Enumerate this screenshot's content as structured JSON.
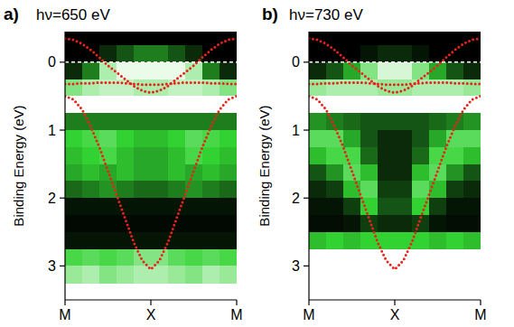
{
  "chart_data": [
    {
      "type": "heatmap",
      "panel_label": "a)",
      "title": "hν=650 eV",
      "ylabel": "Binding Energy (eV)",
      "xlim": [
        0,
        2
      ],
      "xticks": [
        {
          "value": 0,
          "label": "M"
        },
        {
          "value": 1,
          "label": "X"
        },
        {
          "value": 2,
          "label": "M"
        }
      ],
      "ylim": [
        3.5,
        -0.45
      ],
      "yticks": [
        0,
        1,
        2,
        3
      ],
      "hline": 0,
      "x_edges": [
        0,
        0.2,
        0.4,
        0.6,
        0.8,
        1.0,
        1.2,
        1.4,
        1.6,
        1.8,
        2.0
      ],
      "y_edges": [
        -0.5,
        -0.25,
        0,
        0.25,
        0.5,
        0.75,
        1.0,
        1.25,
        1.5,
        1.75,
        2.0,
        2.25,
        2.5,
        2.75,
        3.0,
        3.25
      ],
      "cells": [
        [
          0,
          0,
          0,
          0,
          0,
          0,
          0,
          0,
          0,
          0
        ],
        [
          0,
          0,
          0.1,
          0.2,
          0.3,
          0.3,
          0.2,
          0.1,
          0,
          0
        ],
        [
          0.1,
          0.3,
          0.8,
          0.95,
          0.95,
          0.95,
          0.95,
          0.8,
          0.3,
          0.1
        ],
        [
          0.7,
          0.8,
          0.85,
          0.85,
          0.8,
          0.8,
          0.85,
          0.85,
          0.8,
          0.7
        ],
        [
          1,
          1,
          1,
          1,
          1,
          1,
          1,
          1,
          1,
          1
        ],
        [
          0.3,
          0.3,
          0.3,
          0.3,
          0.3,
          0.3,
          0.3,
          0.3,
          0.3,
          0.3
        ],
        [
          0.5,
          0.55,
          0.6,
          0.5,
          0.45,
          0.45,
          0.5,
          0.6,
          0.55,
          0.5
        ],
        [
          0.45,
          0.5,
          0.55,
          0.45,
          0.4,
          0.4,
          0.45,
          0.55,
          0.5,
          0.45
        ],
        [
          0.4,
          0.45,
          0.4,
          0.45,
          0.4,
          0.4,
          0.45,
          0.4,
          0.45,
          0.4
        ],
        [
          0.25,
          0.3,
          0.35,
          0.3,
          0.25,
          0.25,
          0.3,
          0.35,
          0.3,
          0.25
        ],
        [
          0.05,
          0.05,
          0.05,
          0.05,
          0.05,
          0.05,
          0.05,
          0.05,
          0.05,
          0.05
        ],
        [
          0.02,
          0.02,
          0.02,
          0.02,
          0.02,
          0.02,
          0.02,
          0.02,
          0.02,
          0.02
        ],
        [
          0.05,
          0.05,
          0.05,
          0.05,
          0.05,
          0.05,
          0.05,
          0.05,
          0.05,
          0.05
        ],
        [
          0.55,
          0.6,
          0.55,
          0.6,
          0.7,
          0.7,
          0.6,
          0.55,
          0.6,
          0.55
        ],
        [
          0.75,
          0.8,
          0.7,
          0.75,
          0.8,
          0.8,
          0.75,
          0.7,
          0.8,
          0.75
        ]
      ],
      "x": [
        0,
        0.1,
        0.2,
        0.3,
        0.4,
        0.5,
        0.6,
        0.7,
        0.8,
        0.9,
        1.0,
        1.1,
        1.2,
        1.3,
        1.4,
        1.5,
        1.6,
        1.7,
        1.8,
        1.9,
        2.0
      ],
      "series": [
        {
          "color": "#e8231b",
          "line_style": "dotted",
          "values": [
            -0.35,
            -0.33,
            -0.27,
            -0.18,
            -0.07,
            0.05,
            0.15,
            0.25,
            0.35,
            0.42,
            0.45,
            0.42,
            0.35,
            0.25,
            0.15,
            0.05,
            -0.07,
            -0.18,
            -0.27,
            -0.33,
            -0.35
          ]
        },
        {
          "color": "#e8231b",
          "line_style": "dotted",
          "values": [
            0.32,
            0.32,
            0.31,
            0.31,
            0.3,
            0.3,
            0.3,
            0.31,
            0.32,
            0.33,
            0.33,
            0.33,
            0.32,
            0.31,
            0.3,
            0.3,
            0.3,
            0.31,
            0.31,
            0.32,
            0.32
          ]
        },
        {
          "color": "#e8231b",
          "line_style": "dotted",
          "values": [
            0.5,
            0.55,
            0.7,
            0.95,
            1.25,
            1.6,
            1.95,
            2.3,
            2.65,
            2.92,
            3.05,
            2.92,
            2.65,
            2.3,
            1.95,
            1.6,
            1.25,
            0.95,
            0.7,
            0.55,
            0.5
          ]
        }
      ]
    },
    {
      "type": "heatmap",
      "panel_label": "b)",
      "title": "hν=730 eV",
      "ylabel": "Binding Energy (eV)",
      "xlim": [
        0,
        2
      ],
      "xticks": [
        {
          "value": 0,
          "label": "M"
        },
        {
          "value": 1,
          "label": "X"
        },
        {
          "value": 2,
          "label": "M"
        }
      ],
      "ylim": [
        3.5,
        -0.45
      ],
      "yticks": [
        0,
        1,
        2,
        3
      ],
      "hline": 0,
      "x_edges": [
        0,
        0.2,
        0.4,
        0.6,
        0.8,
        1.0,
        1.2,
        1.4,
        1.6,
        1.8,
        2.0
      ],
      "y_edges": [
        -0.5,
        -0.25,
        0,
        0.25,
        0.5,
        0.75,
        1.0,
        1.25,
        1.5,
        1.75,
        2.0,
        2.25,
        2.5,
        2.75,
        3.0,
        3.25
      ],
      "cells": [
        [
          0,
          0,
          0,
          0,
          0,
          0,
          0,
          0,
          0,
          0
        ],
        [
          0,
          0,
          0,
          0.05,
          0.1,
          0.1,
          0.05,
          0,
          0,
          0
        ],
        [
          0.1,
          0.2,
          0.4,
          0.7,
          0.9,
          0.9,
          0.7,
          0.4,
          0.2,
          0.1
        ],
        [
          0.75,
          0.8,
          0.8,
          0.8,
          0.75,
          0.75,
          0.8,
          0.8,
          0.8,
          0.75
        ],
        [
          1,
          1,
          1,
          1,
          1,
          1,
          1,
          1,
          1,
          1
        ],
        [
          0.35,
          0.3,
          0.25,
          0.2,
          0.2,
          0.2,
          0.2,
          0.25,
          0.3,
          0.35
        ],
        [
          0.6,
          0.6,
          0.4,
          0.2,
          0.1,
          0.1,
          0.2,
          0.4,
          0.6,
          0.6
        ],
        [
          0.45,
          0.55,
          0.55,
          0.25,
          0.1,
          0.1,
          0.25,
          0.55,
          0.55,
          0.45
        ],
        [
          0.2,
          0.35,
          0.6,
          0.45,
          0.1,
          0.1,
          0.45,
          0.6,
          0.35,
          0.2
        ],
        [
          0.1,
          0.15,
          0.45,
          0.6,
          0.15,
          0.15,
          0.6,
          0.45,
          0.15,
          0.1
        ],
        [
          0.05,
          0.05,
          0.15,
          0.5,
          0.2,
          0.2,
          0.5,
          0.15,
          0.05,
          0.05
        ],
        [
          0.03,
          0.03,
          0.05,
          0.15,
          0.1,
          0.1,
          0.15,
          0.05,
          0.03,
          0.03
        ],
        [
          0.45,
          0.5,
          0.45,
          0.5,
          0.5,
          0.5,
          0.5,
          0.45,
          0.5,
          0.45
        ],
        [
          null,
          null,
          null,
          null,
          null,
          null,
          null,
          null,
          null,
          null
        ],
        [
          null,
          null,
          null,
          null,
          null,
          null,
          null,
          null,
          null,
          null
        ]
      ],
      "x": [
        0,
        0.1,
        0.2,
        0.3,
        0.4,
        0.5,
        0.6,
        0.7,
        0.8,
        0.9,
        1.0,
        1.1,
        1.2,
        1.3,
        1.4,
        1.5,
        1.6,
        1.7,
        1.8,
        1.9,
        2.0
      ],
      "series": [
        {
          "color": "#e8231b",
          "line_style": "dotted",
          "values": [
            -0.35,
            -0.33,
            -0.27,
            -0.18,
            -0.07,
            0.05,
            0.15,
            0.25,
            0.35,
            0.42,
            0.45,
            0.42,
            0.35,
            0.25,
            0.15,
            0.05,
            -0.07,
            -0.18,
            -0.27,
            -0.33,
            -0.35
          ]
        },
        {
          "color": "#e8231b",
          "line_style": "dotted",
          "values": [
            0.32,
            0.32,
            0.31,
            0.31,
            0.3,
            0.3,
            0.3,
            0.31,
            0.32,
            0.33,
            0.33,
            0.33,
            0.32,
            0.31,
            0.3,
            0.3,
            0.3,
            0.31,
            0.31,
            0.32,
            0.32
          ]
        },
        {
          "color": "#e8231b",
          "line_style": "dotted",
          "values": [
            0.5,
            0.55,
            0.7,
            0.95,
            1.25,
            1.6,
            1.95,
            2.3,
            2.65,
            2.92,
            3.05,
            2.92,
            2.65,
            2.3,
            1.95,
            1.6,
            1.25,
            0.95,
            0.7,
            0.55,
            0.5
          ]
        }
      ]
    }
  ]
}
